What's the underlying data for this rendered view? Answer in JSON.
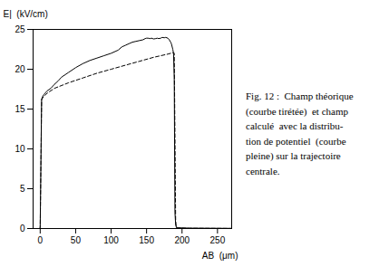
{
  "chart_data": {
    "type": "line",
    "xlabel": "AB  (μm)",
    "ylabel": "E|  (kV/cm)",
    "caption": [
      "Fig. 12 :  Champ théorique",
      "(courbe tirétée)  et champ",
      "calculé  avec la distribu-",
      "tion de potentiel  (courbe",
      "pleine) sur la trajectoire",
      "centrale."
    ],
    "xlim": [
      -10,
      270
    ],
    "ylim": [
      0,
      25
    ],
    "xticks": [
      0,
      50,
      100,
      150,
      200,
      250
    ],
    "yticks": [
      0,
      5,
      10,
      15,
      20,
      25
    ],
    "series": [
      {
        "color": "black",
        "line_style": "solid",
        "x": [
          -10,
          -0.5,
          0,
          1,
          2,
          3,
          5,
          8,
          10,
          15,
          20,
          25,
          30,
          40,
          50,
          60,
          70,
          80,
          90,
          100,
          110,
          115,
          120,
          125,
          130,
          135,
          140,
          145,
          148,
          150,
          152,
          155,
          157,
          160,
          163,
          165,
          167,
          170,
          172,
          175,
          177,
          180,
          182,
          184,
          185,
          187,
          188,
          189,
          190,
          191,
          192,
          195,
          200,
          210,
          250,
          270
        ],
        "values": [
          0.0,
          0.0,
          0.2,
          8.0,
          16.2,
          16.5,
          16.8,
          17.1,
          17.3,
          17.6,
          18.1,
          18.5,
          19.0,
          19.6,
          20.2,
          20.7,
          21.1,
          21.4,
          21.7,
          22.0,
          22.4,
          22.8,
          23.0,
          23.2,
          23.4,
          23.5,
          23.6,
          23.7,
          23.85,
          23.9,
          23.9,
          23.85,
          23.9,
          23.8,
          23.85,
          23.9,
          23.85,
          23.9,
          24.0,
          23.95,
          24.0,
          23.9,
          23.7,
          23.4,
          23.2,
          22.5,
          22.0,
          19.0,
          2.0,
          0.5,
          0.15,
          0.1,
          0.08,
          0.05,
          0.03,
          0.02
        ]
      },
      {
        "color": "black",
        "line_style": "dashed",
        "x": [
          -10,
          -0.5,
          0,
          1,
          2,
          5,
          10,
          20,
          40,
          60,
          80,
          100,
          120,
          140,
          160,
          180,
          188,
          189,
          190,
          191,
          192,
          210,
          250,
          270
        ],
        "values": [
          0.0,
          0.0,
          0.1,
          8.0,
          16.2,
          16.6,
          17.0,
          17.6,
          18.3,
          18.9,
          19.5,
          20.0,
          20.5,
          21.0,
          21.5,
          21.9,
          22.1,
          22.0,
          12.0,
          1.0,
          0.05,
          0.03,
          0.02,
          0.01
        ]
      }
    ]
  }
}
